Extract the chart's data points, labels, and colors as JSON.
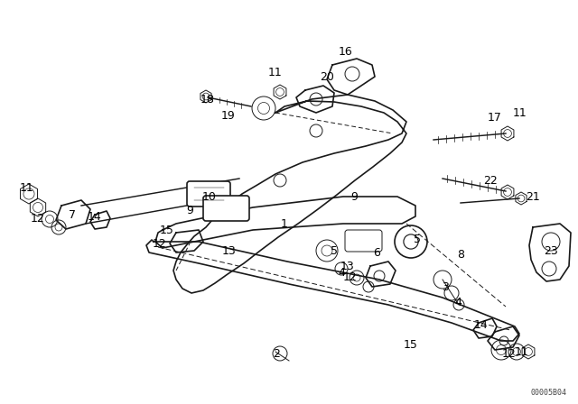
{
  "background_color": "#ffffff",
  "diagram_color": "#1a1a1a",
  "watermark": "00005B04",
  "fig_width": 6.4,
  "fig_height": 4.48,
  "dpi": 100,
  "labels": [
    [
      "1",
      315,
      248
    ],
    [
      "2",
      306,
      392
    ],
    [
      "3",
      493,
      318
    ],
    [
      "4",
      507,
      335
    ],
    [
      "4",
      378,
      302
    ],
    [
      "5",
      462,
      265
    ],
    [
      "5",
      370,
      278
    ],
    [
      "6",
      417,
      280
    ],
    [
      "7",
      80,
      238
    ],
    [
      "8",
      510,
      282
    ],
    [
      "9",
      210,
      233
    ],
    [
      "9",
      392,
      218
    ],
    [
      "10",
      232,
      218
    ],
    [
      "11",
      30,
      208
    ],
    [
      "11",
      305,
      80
    ],
    [
      "11",
      576,
      125
    ],
    [
      "11",
      578,
      390
    ],
    [
      "12",
      42,
      242
    ],
    [
      "12",
      177,
      270
    ],
    [
      "12",
      388,
      307
    ],
    [
      "12",
      564,
      392
    ],
    [
      "13",
      254,
      278
    ],
    [
      "13",
      385,
      295
    ],
    [
      "14",
      105,
      240
    ],
    [
      "14",
      533,
      360
    ],
    [
      "15",
      185,
      255
    ],
    [
      "15",
      455,
      382
    ],
    [
      "16",
      383,
      57
    ],
    [
      "17",
      548,
      130
    ],
    [
      "18",
      230,
      110
    ],
    [
      "19",
      253,
      128
    ],
    [
      "20",
      362,
      85
    ],
    [
      "21",
      590,
      218
    ],
    [
      "22",
      543,
      200
    ],
    [
      "23",
      610,
      278
    ]
  ]
}
